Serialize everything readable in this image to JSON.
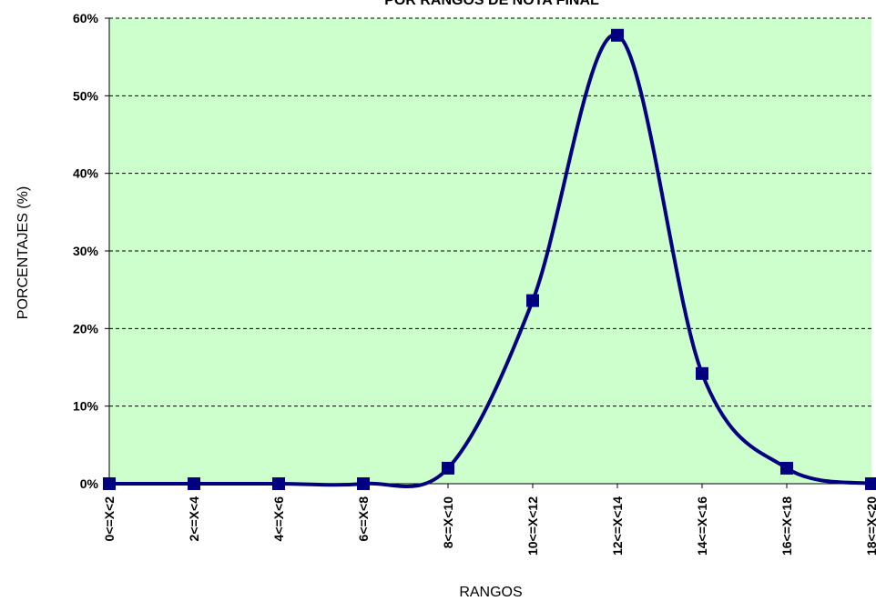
{
  "chart_data": {
    "type": "line",
    "title": "POR RANGOS DE NOTA FINAL",
    "xlabel": "RANGOS",
    "ylabel": "PORCENTAJES (%)",
    "categories": [
      "0<=X<2",
      "2<=X<4",
      "4<=X<6",
      "6<=X<8",
      "8<=X<10",
      "10<=X<12",
      "12<=X<14",
      "14<=X<16",
      "16<=X<18",
      "18<=X<20"
    ],
    "series": [
      {
        "values": [
          0,
          0,
          0,
          0,
          2,
          23.6,
          57.8,
          14.2,
          2,
          0
        ]
      }
    ],
    "ylim": [
      0,
      60
    ],
    "yticks": [
      0,
      10,
      20,
      30,
      40,
      50,
      60
    ],
    "ytick_labels": [
      "0%",
      "10%",
      "20%",
      "30%",
      "40%",
      "50%",
      "60%"
    ],
    "grid": true,
    "smooth": true,
    "marker": "square",
    "colors": {
      "plot_bg": "#ccffcc",
      "line": "#000080",
      "marker": "#000080",
      "grid": "#000000"
    }
  }
}
